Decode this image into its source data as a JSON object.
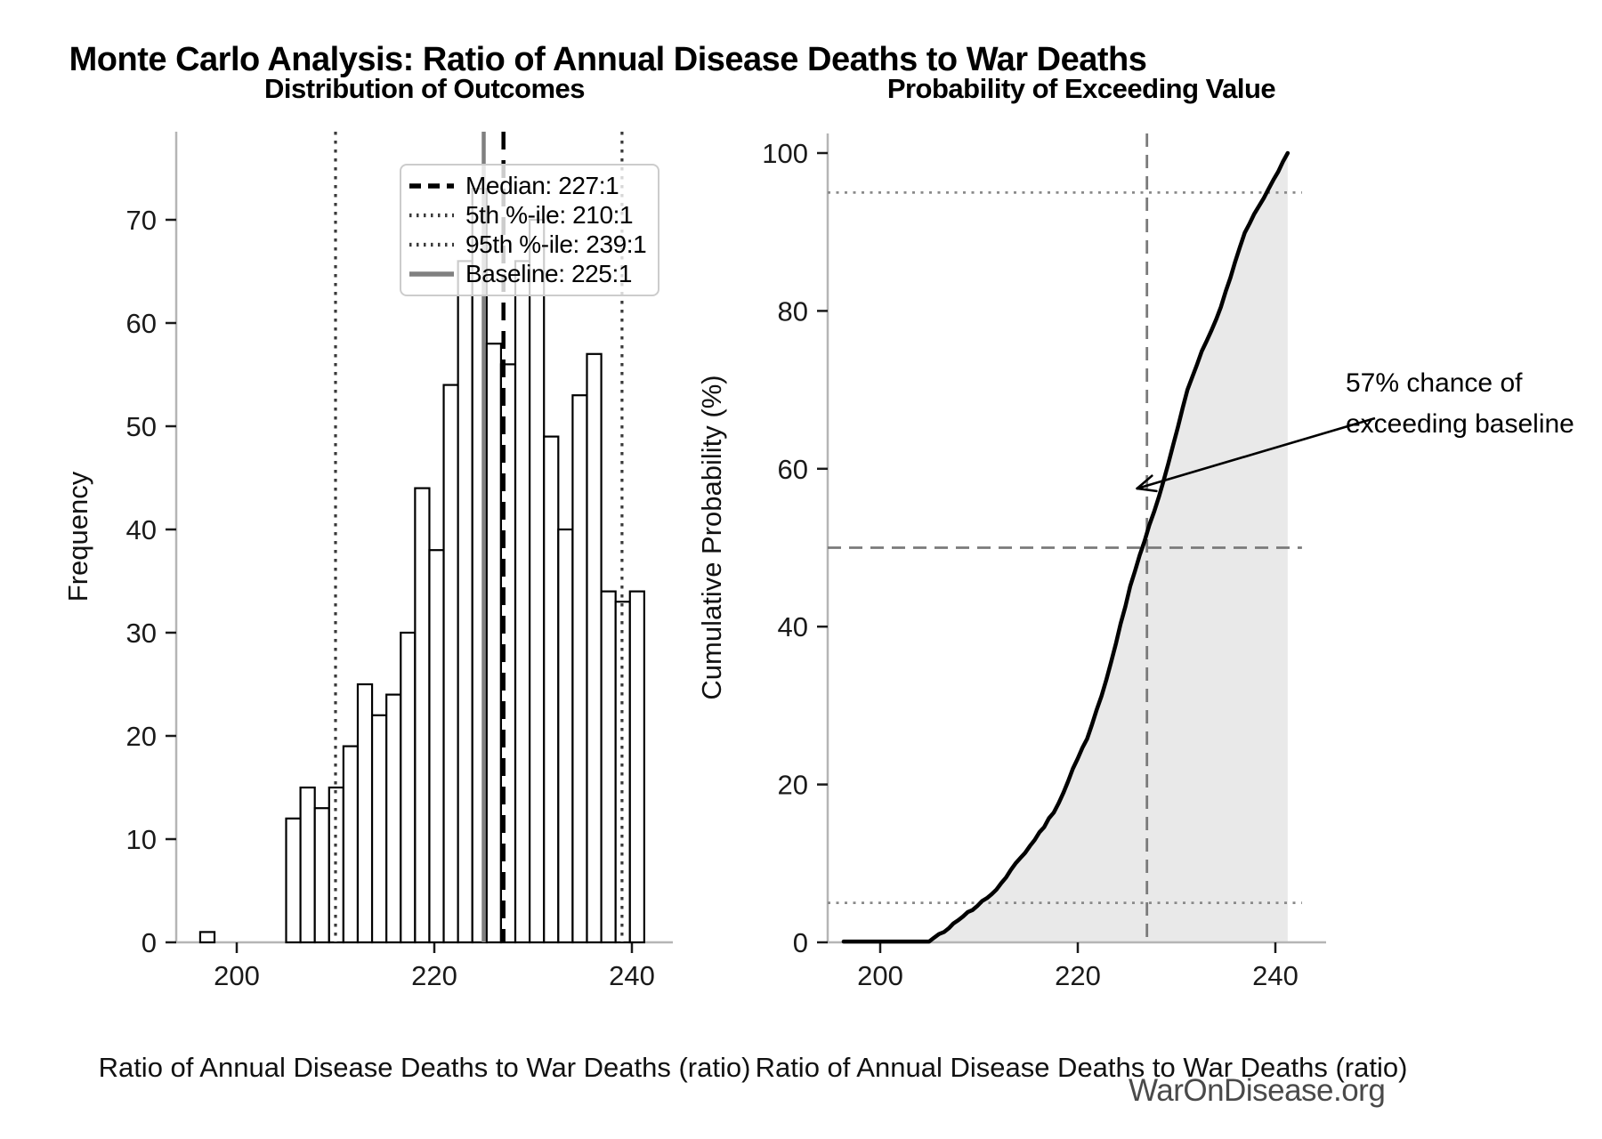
{
  "figure": {
    "suptitle": "Monte Carlo Analysis: Ratio of Annual Disease Deaths to War Deaths",
    "watermark": "WarOnDisease.org",
    "background": "#ffffff"
  },
  "chart_data": [
    {
      "type": "bar",
      "subtype": "histogram",
      "title": "Distribution of Outcomes",
      "xlabel": "Ratio of Annual Disease Deaths to War Deaths (ratio)",
      "ylabel": "Frequency",
      "xlim": [
        193.9,
        244.1
      ],
      "ylim": [
        0,
        78.5
      ],
      "xticks": [
        200,
        220,
        240
      ],
      "yticks": [
        0,
        10,
        20,
        30,
        40,
        50,
        60,
        70
      ],
      "grid": false,
      "bar_fill": "#ffffff",
      "bar_edge": "#000000",
      "bin_start": 196.3,
      "bin_width": 1.45,
      "counts": [
        1,
        0,
        0,
        0,
        0,
        0,
        12,
        15,
        13,
        15,
        19,
        25,
        22,
        24,
        30,
        44,
        38,
        54,
        66,
        73,
        58,
        56,
        66,
        70,
        49,
        40,
        53,
        57,
        34,
        33,
        34
      ],
      "n_samples": 1001,
      "vlines": [
        {
          "value": 227,
          "style": "dashed",
          "color": "#000000",
          "width": 4.5,
          "label": "Median: 227:1"
        },
        {
          "value": 210,
          "style": "dotted",
          "color": "#3a3a3a",
          "width": 3.2,
          "label": "5th %-ile: 210:1"
        },
        {
          "value": 239,
          "style": "dotted",
          "color": "#3a3a3a",
          "width": 3.2,
          "label": "95th %-ile: 239:1"
        },
        {
          "value": 225,
          "style": "solid",
          "color": "#808080",
          "width": 4.5,
          "label": "Baseline: 225:1"
        }
      ],
      "legend_position": "upper right"
    },
    {
      "type": "line",
      "subtype": "cdf",
      "title": "Probability of Exceeding Value",
      "xlabel": "Ratio of Annual Disease Deaths to War Deaths (ratio)",
      "ylabel": "Cumulative Probability (%)",
      "xlim": [
        194.7,
        245.1
      ],
      "ylim": [
        0,
        100
      ],
      "xticks": [
        200,
        220,
        240
      ],
      "yticks": [
        0,
        20,
        40,
        60,
        80,
        100
      ],
      "grid": false,
      "line_color": "#000000",
      "fill_color": "#e9e9e9",
      "x": [
        196.3,
        197.75,
        204.95,
        206.45,
        207.9,
        209.35,
        210.8,
        212.25,
        213.7,
        215.15,
        216.6,
        218.05,
        219.5,
        220.95,
        222.4,
        223.85,
        225.3,
        226.75,
        228.2,
        229.65,
        231.1,
        232.55,
        234.0,
        235.45,
        236.9,
        238.35,
        239.8,
        241.25
      ],
      "y": [
        0.1,
        0.1,
        0.1,
        1.3,
        2.8,
        4.1,
        5.6,
        7.5,
        10.0,
        12.2,
        14.6,
        17.6,
        22.0,
        25.8,
        31.2,
        37.8,
        45.1,
        50.8,
        56.4,
        63.0,
        70.0,
        74.9,
        78.9,
        84.2,
        89.9,
        93.3,
        96.6,
        100.0
      ],
      "hlines": [
        {
          "value": 95,
          "style": "dotted",
          "color": "#8a8a8a",
          "width": 2.8
        },
        {
          "value": 50,
          "style": "dashed",
          "color": "#7a7a7a",
          "width": 2.8
        },
        {
          "value": 5,
          "style": "dotted",
          "color": "#8a8a8a",
          "width": 2.8
        }
      ],
      "vlines": [
        {
          "value": 227,
          "style": "dashed",
          "color": "#7a7a7a",
          "width": 2.8
        }
      ],
      "annotation": {
        "lines": [
          "57% chance of",
          "exceeding baseline"
        ],
        "arrow_tip_data": [
          226.0,
          57.5
        ]
      }
    }
  ]
}
